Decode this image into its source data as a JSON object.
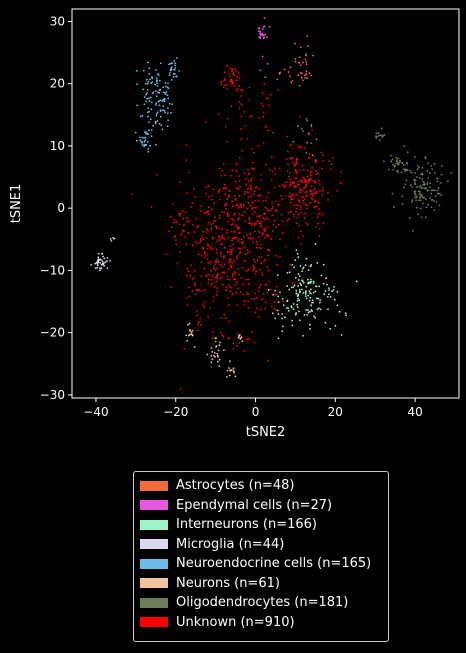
{
  "chart_data": {
    "type": "scatter",
    "xlabel": "tSNE2",
    "ylabel": "tSNE1",
    "xlim": [
      -46,
      51
    ],
    "ylim": [
      -30.5,
      32
    ],
    "xticks": [
      -40,
      -20,
      0,
      20,
      40
    ],
    "yticks": [
      -30,
      -20,
      -10,
      0,
      10,
      20,
      30
    ],
    "grid": false,
    "legend_position": "below",
    "background": "#000000",
    "series": [
      {
        "name": "Astrocytes (n=48)",
        "color": "#f26b3a",
        "count": 48,
        "clusters": [
          {
            "cx": 12,
            "cy": 23.5,
            "sx": 1.2,
            "sy": 2.0,
            "n": 30
          },
          {
            "cx": 8,
            "cy": 22,
            "sx": 1.5,
            "sy": 1.5,
            "n": 10
          },
          {
            "cx": 12,
            "cy": 12,
            "sx": 1.5,
            "sy": 1.5,
            "n": 8
          }
        ]
      },
      {
        "name": "Ependymal cells (n=27)",
        "color": "#e855e0",
        "count": 27,
        "clusters": [
          {
            "cx": 2,
            "cy": 28.3,
            "sx": 0.8,
            "sy": 0.8,
            "n": 22
          },
          {
            "cx": 2,
            "cy": 24,
            "sx": 0.6,
            "sy": 1.5,
            "n": 5
          }
        ]
      },
      {
        "name": "Interneurons (n=166)",
        "color": "#9ff5c8",
        "count": 166,
        "clusters": [
          {
            "cx": 13,
            "cy": -14,
            "sx": 4.0,
            "sy": 2.5,
            "n": 140
          },
          {
            "cx": 12,
            "cy": -9,
            "sx": 2.0,
            "sy": 1.5,
            "n": 16
          },
          {
            "cx": 7,
            "cy": -18,
            "sx": 2.0,
            "sy": 1.5,
            "n": 10
          }
        ]
      },
      {
        "name": "Microglia (n=44)",
        "color": "#dcd8f0",
        "count": 44,
        "clusters": [
          {
            "cx": -39,
            "cy": -8.5,
            "sx": 0.9,
            "sy": 0.9,
            "n": 40
          },
          {
            "cx": -36,
            "cy": -5,
            "sx": 0.4,
            "sy": 0.4,
            "n": 4
          }
        ]
      },
      {
        "name": "Neuroendocrine cells (n=165)",
        "color": "#6bbde8",
        "count": 165,
        "clusters": [
          {
            "cx": -25,
            "cy": 18,
            "sx": 2.0,
            "sy": 2.5,
            "n": 110
          },
          {
            "cx": -20.5,
            "cy": 22.5,
            "sx": 0.8,
            "sy": 1.0,
            "n": 25
          },
          {
            "cx": -28,
            "cy": 11,
            "sx": 0.9,
            "sy": 0.9,
            "n": 30
          }
        ]
      },
      {
        "name": "Neurons (n=61)",
        "color": "#f6c29e",
        "count": 61,
        "clusters": [
          {
            "cx": -10,
            "cy": -23,
            "sx": 1.0,
            "sy": 1.5,
            "n": 24
          },
          {
            "cx": -6,
            "cy": -26,
            "sx": 0.6,
            "sy": 0.6,
            "n": 15
          },
          {
            "cx": -16,
            "cy": -20,
            "sx": 0.6,
            "sy": 1.2,
            "n": 14
          },
          {
            "cx": -4,
            "cy": -21,
            "sx": 0.5,
            "sy": 0.5,
            "n": 8
          }
        ]
      },
      {
        "name": "Oligodendrocytes (n=181)",
        "color": "#6e7d57",
        "count": 181,
        "clusters": [
          {
            "cx": 42,
            "cy": 3,
            "sx": 2.5,
            "sy": 2.5,
            "n": 120
          },
          {
            "cx": 36,
            "cy": 7,
            "sx": 2.0,
            "sy": 1.0,
            "n": 40
          },
          {
            "cx": 31,
            "cy": 12,
            "sx": 0.8,
            "sy": 0.8,
            "n": 13
          },
          {
            "cx": 13,
            "cy": 13,
            "sx": 1.0,
            "sy": 1.0,
            "n": 8
          }
        ]
      },
      {
        "name": "Unknown (n=910)",
        "color": "#ff0000",
        "count": 910,
        "clusters": [
          {
            "cx": -7,
            "cy": -8,
            "sx": 6.0,
            "sy": 7.0,
            "n": 460
          },
          {
            "cx": 0,
            "cy": 0,
            "sx": 5.0,
            "sy": 5.0,
            "n": 150
          },
          {
            "cx": 12,
            "cy": 3,
            "sx": 3.0,
            "sy": 3.0,
            "n": 200
          },
          {
            "cx": -6,
            "cy": 21,
            "sx": 1.0,
            "sy": 1.2,
            "n": 40
          },
          {
            "cx": -19,
            "cy": -2,
            "sx": 1.2,
            "sy": 1.5,
            "n": 20
          },
          {
            "cx": 1,
            "cy": 15,
            "sx": 3.0,
            "sy": 3.0,
            "n": 40
          }
        ]
      }
    ]
  }
}
